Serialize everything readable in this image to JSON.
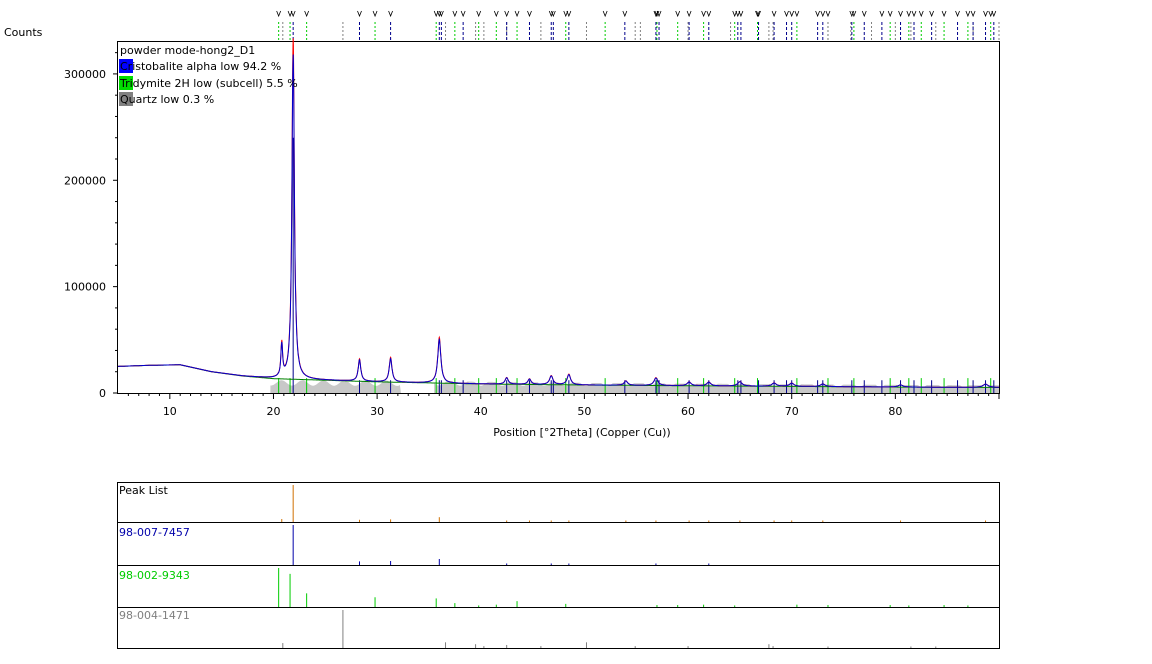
{
  "chart_data": {
    "type": "line",
    "ylabel": "Counts",
    "xlabel": "Position [°2Theta] (Copper (Cu))",
    "xlim": [
      5,
      90
    ],
    "ylim": [
      0,
      330000
    ],
    "x_ticks": [
      10,
      20,
      30,
      40,
      50,
      60,
      70,
      80
    ],
    "y_ticks": [
      0,
      100000,
      200000,
      300000
    ],
    "y_tick_labels": [
      "0",
      "100000",
      "200000",
      "300000"
    ],
    "x_tick_labels": [
      "10",
      "20",
      "30",
      "40",
      "50",
      "60",
      "70",
      "80"
    ],
    "sample_name": "powder mode-hong2_D1",
    "legend": [
      {
        "label": "Cristobalite alpha low 94.2 %",
        "color": "#0000ff"
      },
      {
        "label": "Tridymite 2H low (subcell) 5.5 %",
        "color": "#00dd00"
      },
      {
        "label": "Quartz low 0.3 %",
        "color": "#808080"
      }
    ],
    "colors": {
      "observed": "#ff0000",
      "calculated": "#0000cc",
      "background": "#008000",
      "difference": "#c8c8c8",
      "peak_list": "#d07000",
      "cristobalite": "#00008b",
      "tridymite": "#00cc00",
      "quartz": "#808080"
    },
    "background_points": [
      [
        5,
        25000
      ],
      [
        8,
        26000
      ],
      [
        11,
        26500
      ],
      [
        14,
        20000
      ],
      [
        17,
        16000
      ],
      [
        20,
        13500
      ],
      [
        25,
        12000
      ],
      [
        30,
        10500
      ],
      [
        40,
        8500
      ],
      [
        50,
        7500
      ],
      [
        60,
        6800
      ],
      [
        70,
        6200
      ],
      [
        80,
        5600
      ],
      [
        90,
        5200
      ]
    ],
    "observed_peaks": [
      {
        "x": 20.8,
        "h": 30000,
        "w": 0.1
      },
      {
        "x": 21.9,
        "h": 305000,
        "w": 0.14
      },
      {
        "x": 28.3,
        "h": 20000,
        "w": 0.15
      },
      {
        "x": 31.3,
        "h": 22000,
        "w": 0.16
      },
      {
        "x": 36.0,
        "h": 41000,
        "w": 0.18
      },
      {
        "x": 42.5,
        "h": 6000,
        "w": 0.18
      },
      {
        "x": 44.7,
        "h": 5000,
        "w": 0.18
      },
      {
        "x": 46.8,
        "h": 8000,
        "w": 0.2
      },
      {
        "x": 48.5,
        "h": 9500,
        "w": 0.2
      },
      {
        "x": 54.0,
        "h": 4000,
        "w": 0.2
      },
      {
        "x": 56.9,
        "h": 7000,
        "w": 0.22
      },
      {
        "x": 60.1,
        "h": 3500,
        "w": 0.22
      },
      {
        "x": 62.0,
        "h": 3500,
        "w": 0.22
      },
      {
        "x": 65.0,
        "h": 4000,
        "w": 0.25
      },
      {
        "x": 68.3,
        "h": 3000,
        "w": 0.25
      },
      {
        "x": 70.0,
        "h": 3000,
        "w": 0.25
      },
      {
        "x": 73.0,
        "h": 2500,
        "w": 0.25
      },
      {
        "x": 80.5,
        "h": 2000,
        "w": 0.28
      },
      {
        "x": 88.7,
        "h": 3000,
        "w": 0.3
      }
    ],
    "cristobalite_refs": [
      21.9,
      28.3,
      31.3,
      36.0,
      36.2,
      38.3,
      42.5,
      44.7,
      46.8,
      47.0,
      48.5,
      53.9,
      56.9,
      57.2,
      60.1,
      62.0,
      64.8,
      65.1,
      66.8,
      68.3,
      69.5,
      70.0,
      72.5,
      73.0,
      75.8,
      77.0,
      78.7,
      80.5,
      81.8,
      83.5,
      86.0,
      87.5,
      88.7,
      89.5
    ],
    "tridymite_refs": [
      20.5,
      21.6,
      23.2,
      29.8,
      35.7,
      37.5,
      39.8,
      41.5,
      43.5,
      48.2,
      52.0,
      57.0,
      59.0,
      61.5,
      64.5,
      66.7,
      70.5,
      73.5,
      76.0,
      79.5,
      81.3,
      82.5,
      84.7,
      87.0,
      89.2
    ],
    "quartz_refs": [
      20.9,
      26.7,
      36.6,
      39.5,
      40.3,
      42.5,
      45.8,
      50.2,
      54.9,
      55.4,
      60.0,
      64.1,
      67.8,
      68.2,
      73.5,
      75.7,
      77.7,
      80.0,
      81.5,
      83.9,
      87.5,
      90.0
    ],
    "panels": [
      {
        "label": "Peak List",
        "color": "#000000",
        "sticks": [
          [
            21.9,
            1.0
          ],
          [
            20.8,
            0.08
          ],
          [
            28.3,
            0.06
          ],
          [
            31.3,
            0.07
          ],
          [
            36.0,
            0.13
          ],
          [
            42.5,
            0.03
          ],
          [
            44.7,
            0.02
          ],
          [
            46.8,
            0.03
          ],
          [
            48.5,
            0.03
          ],
          [
            54.0,
            0.02
          ],
          [
            56.9,
            0.03
          ],
          [
            60.1,
            0.02
          ],
          [
            62.0,
            0.02
          ],
          [
            65.0,
            0.02
          ],
          [
            68.3,
            0.02
          ],
          [
            70.0,
            0.02
          ],
          [
            73.0,
            0.02
          ],
          [
            80.5,
            0.02
          ],
          [
            88.7,
            0.02
          ]
        ]
      },
      {
        "label": "98-007-7457",
        "color": "#0000aa",
        "sticks": [
          [
            21.9,
            1.0
          ],
          [
            28.3,
            0.09
          ],
          [
            31.3,
            0.1
          ],
          [
            36.0,
            0.15
          ],
          [
            42.5,
            0.02
          ],
          [
            46.8,
            0.02
          ],
          [
            48.5,
            0.03
          ],
          [
            56.9,
            0.03
          ],
          [
            62.0,
            0.02
          ]
        ]
      },
      {
        "label": "98-002-9343",
        "color": "#00cc00",
        "sticks": [
          [
            20.5,
            1.0
          ],
          [
            21.6,
            0.85
          ],
          [
            23.2,
            0.35
          ],
          [
            29.8,
            0.25
          ],
          [
            35.7,
            0.22
          ],
          [
            37.5,
            0.1
          ],
          [
            39.8,
            0.04
          ],
          [
            41.5,
            0.06
          ],
          [
            43.5,
            0.15
          ],
          [
            48.2,
            0.08
          ],
          [
            57.0,
            0.05
          ],
          [
            59.0,
            0.05
          ],
          [
            61.5,
            0.06
          ],
          [
            64.5,
            0.04
          ],
          [
            70.5,
            0.06
          ],
          [
            73.5,
            0.05
          ],
          [
            79.5,
            0.05
          ],
          [
            81.3,
            0.04
          ],
          [
            84.7,
            0.05
          ],
          [
            87.0,
            0.04
          ]
        ]
      },
      {
        "label": "98-004-1471",
        "color": "#808080",
        "sticks": [
          [
            26.7,
            1.0
          ],
          [
            20.9,
            0.13
          ],
          [
            36.6,
            0.15
          ],
          [
            39.5,
            0.1
          ],
          [
            40.3,
            0.05
          ],
          [
            42.5,
            0.08
          ],
          [
            45.8,
            0.05
          ],
          [
            50.2,
            0.15
          ],
          [
            54.9,
            0.05
          ],
          [
            60.0,
            0.05
          ],
          [
            67.8,
            0.1
          ],
          [
            68.2,
            0.05
          ],
          [
            73.5,
            0.03
          ],
          [
            81.5,
            0.03
          ],
          [
            83.9,
            0.03
          ]
        ]
      }
    ]
  }
}
